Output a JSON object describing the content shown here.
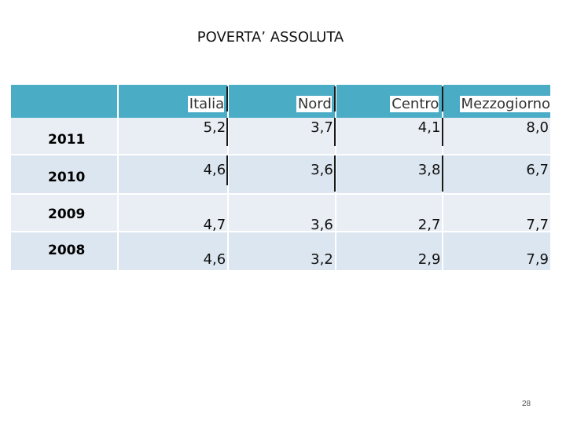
{
  "slide": {
    "title": "POVERTA’ ASSOLUTA",
    "page_number": "28"
  },
  "table": {
    "columns": [
      "",
      "Italia",
      "Nord",
      "Centro",
      "Mezzogiorno"
    ],
    "rows": [
      {
        "year": "2011",
        "values": [
          "5,2",
          "3,7",
          "4,1",
          "8,0"
        ]
      },
      {
        "year": "2010",
        "values": [
          "4,6",
          "3,6",
          "3,8",
          "6,7"
        ]
      },
      {
        "year": "2009",
        "values": [
          "4,7",
          "3,6",
          "2,7",
          "7,7"
        ]
      },
      {
        "year": "2008",
        "values": [
          "4,6",
          "3,2",
          "2,9",
          "7,9"
        ]
      }
    ]
  },
  "colors": {
    "header_accent": "#4bacc6",
    "row_fill": "#e9eef4",
    "row_fill_alt": "#dce6f0"
  }
}
